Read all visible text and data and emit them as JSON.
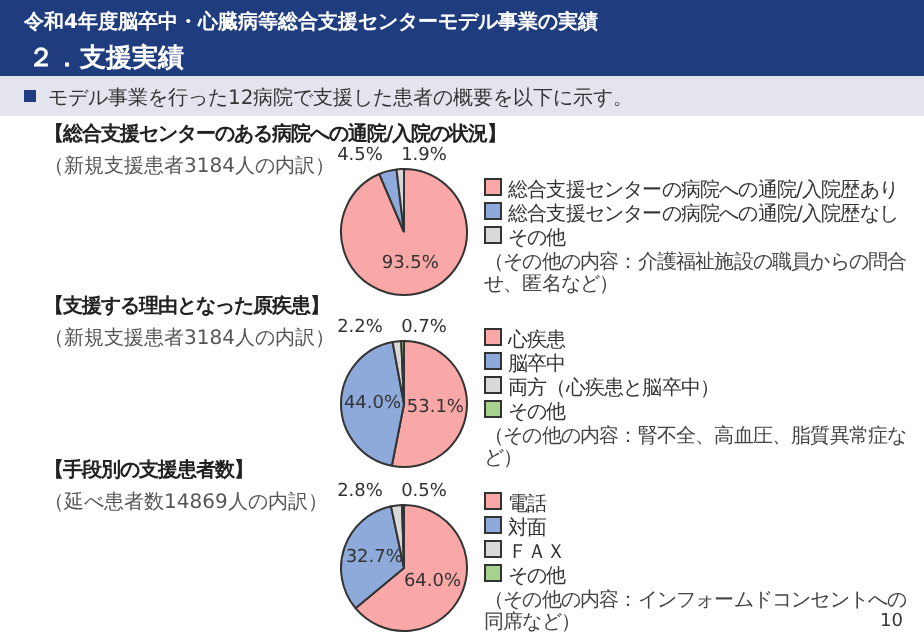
{
  "chart_data": [
    {
      "type": "pie",
      "title": "【総合支援センターのある病院への通院/入院の状況】",
      "subtitle": "（新規支援患者3184人の内訳）",
      "categories": [
        "総合支援センターの病院への通院/入院歴あり",
        "総合支援センターの病院への通院/入院歴なし",
        "その他"
      ],
      "values": [
        93.5,
        4.5,
        1.9
      ],
      "colors": [
        "#f9a7a7",
        "#8eaadb",
        "#d9d9d9"
      ],
      "value_labels": [
        "93.5%",
        "4.5%",
        "1.9%"
      ],
      "legend": "right",
      "annotations": [
        "令和4年度脳卒中・心臓病等総合支援センターモデル事業の実績",
        "２．支援実績",
        "モデル事業を行った12病院で支援した患者の概要を以下に示す。",
        "（その他の内容：介護福祉施設の職員からの問合せ、匿名など）"
      ]
    },
    {
      "type": "pie",
      "title": "【支援する理由となった原疾患】",
      "subtitle": "（新規支援患者3184人の内訳）",
      "categories": [
        "心疾患",
        "脳卒中",
        "両方（心疾患と脳卒中）",
        "その他"
      ],
      "values": [
        53.1,
        44.0,
        2.2,
        0.7
      ],
      "colors": [
        "#f9a7a7",
        "#8eaadb",
        "#d9d9d9",
        "#a9d18e"
      ],
      "value_labels": [
        "53.1%",
        "44.0%",
        "2.2%",
        "0.7%"
      ],
      "legend": "right",
      "annotations": [
        "（その他の内容：腎不全、高血圧、脂質異常症など）"
      ]
    },
    {
      "type": "pie",
      "title": "【手段別の支援患者数】",
      "subtitle": "（延べ患者数14869人の内訳）",
      "categories": [
        "電話",
        "対面",
        "ＦＡＸ",
        "その他"
      ],
      "values": [
        64.0,
        32.7,
        2.8,
        0.5
      ],
      "colors": [
        "#f9a7a7",
        "#8eaadb",
        "#d9d9d9",
        "#a9d18e"
      ],
      "value_labels": [
        "64.0%",
        "32.7%",
        "2.8%",
        "0.5%"
      ],
      "legend": "right",
      "annotations": [
        "10",
        "（その他の内容：インフォームドコンセントへの同席など）"
      ]
    }
  ]
}
